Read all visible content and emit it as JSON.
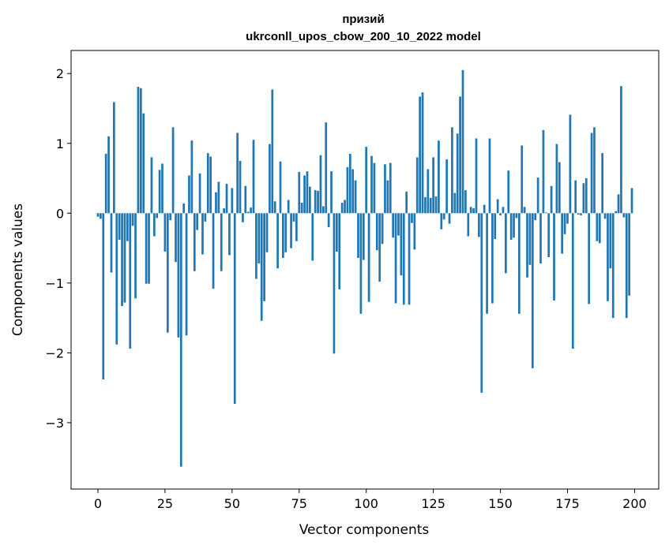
{
  "chart_data": {
    "type": "bar",
    "title_line1": "призий",
    "title_line2": "ukrconll_upos_cbow_200_10_2022 model",
    "xlabel": "Vector components",
    "ylabel": "Components values",
    "xlim": [
      -10,
      209
    ],
    "ylim": [
      -3.95,
      2.33
    ],
    "xticks": [
      0,
      25,
      50,
      75,
      100,
      125,
      150,
      175,
      200
    ],
    "xtick_labels": [
      "0",
      "25",
      "50",
      "75",
      "100",
      "125",
      "150",
      "175",
      "200"
    ],
    "yticks": [
      -3,
      -2,
      -1,
      0,
      1,
      2
    ],
    "ytick_labels": [
      "−3",
      "−2",
      "−1",
      "0",
      "1",
      "2"
    ],
    "bar_color": "#1f77b4",
    "grid": false,
    "values": [
      -0.05,
      -0.08,
      -2.38,
      0.85,
      1.1,
      -0.85,
      1.59,
      -1.88,
      -0.38,
      -1.33,
      -1.28,
      -0.4,
      -1.94,
      -0.18,
      -1.22,
      1.81,
      1.79,
      1.43,
      -1.01,
      -1.01,
      0.8,
      -0.33,
      -0.07,
      0.62,
      0.71,
      -0.55,
      -1.71,
      -0.1,
      1.23,
      -0.7,
      -1.78,
      -3.63,
      0.14,
      -1.75,
      0.54,
      1.04,
      -0.83,
      -0.24,
      0.57,
      -0.59,
      -0.12,
      0.86,
      0.81,
      -1.08,
      0.3,
      0.45,
      -0.83,
      0.07,
      0.42,
      -0.6,
      0.36,
      -2.73,
      1.15,
      0.75,
      -0.13,
      0.39,
      0.02,
      0.08,
      1.05,
      -0.94,
      -0.72,
      -1.54,
      -1.26,
      -0.56,
      0.99,
      1.77,
      0.17,
      -0.79,
      0.74,
      -0.64,
      -0.56,
      0.19,
      -0.5,
      -0.12,
      -0.4,
      0.59,
      0.15,
      0.54,
      0.6,
      0.38,
      -0.68,
      0.33,
      0.32,
      0.83,
      0.1,
      1.3,
      -0.2,
      0.6,
      -2.01,
      -0.55,
      -1.09,
      0.15,
      0.19,
      0.66,
      0.85,
      0.63,
      0.47,
      -0.64,
      -1.44,
      -0.67,
      0.95,
      -1.27,
      0.82,
      0.72,
      -0.53,
      -0.98,
      -0.44,
      0.7,
      0.47,
      0.72,
      -0.35,
      -1.29,
      -0.32,
      -0.89,
      -1.31,
      0.31,
      -1.31,
      -0.14,
      -0.52,
      0.8,
      1.67,
      1.73,
      0.23,
      0.63,
      0.22,
      0.8,
      0.24,
      1.04,
      -0.23,
      -0.09,
      0.77,
      -0.15,
      1.23,
      0.29,
      1.14,
      1.67,
      2.05,
      0.33,
      -0.33,
      0.09,
      0.07,
      1.07,
      -0.34,
      -2.57,
      0.12,
      -1.44,
      1.07,
      -1.29,
      -0.37,
      0.2,
      -0.03,
      0.09,
      -0.86,
      0.61,
      -0.38,
      -0.35,
      -0.07,
      -1.44,
      0.97,
      0.09,
      -0.92,
      -0.74,
      -2.22,
      -0.1,
      0.51,
      -0.72,
      1.19,
      0.01,
      -0.63,
      0.39,
      -1.25,
      0.99,
      0.73,
      -0.58,
      -0.3,
      -0.15,
      1.41,
      -1.94,
      0.47,
      -0.02,
      -0.03,
      0.43,
      0.5,
      -1.3,
      1.15,
      1.23,
      -0.4,
      -0.43,
      0.86,
      -0.08,
      -1.26,
      -0.79,
      -1.5,
      0.03,
      0.27,
      1.82,
      -0.06,
      -1.5,
      -1.18,
      0.36
    ]
  }
}
